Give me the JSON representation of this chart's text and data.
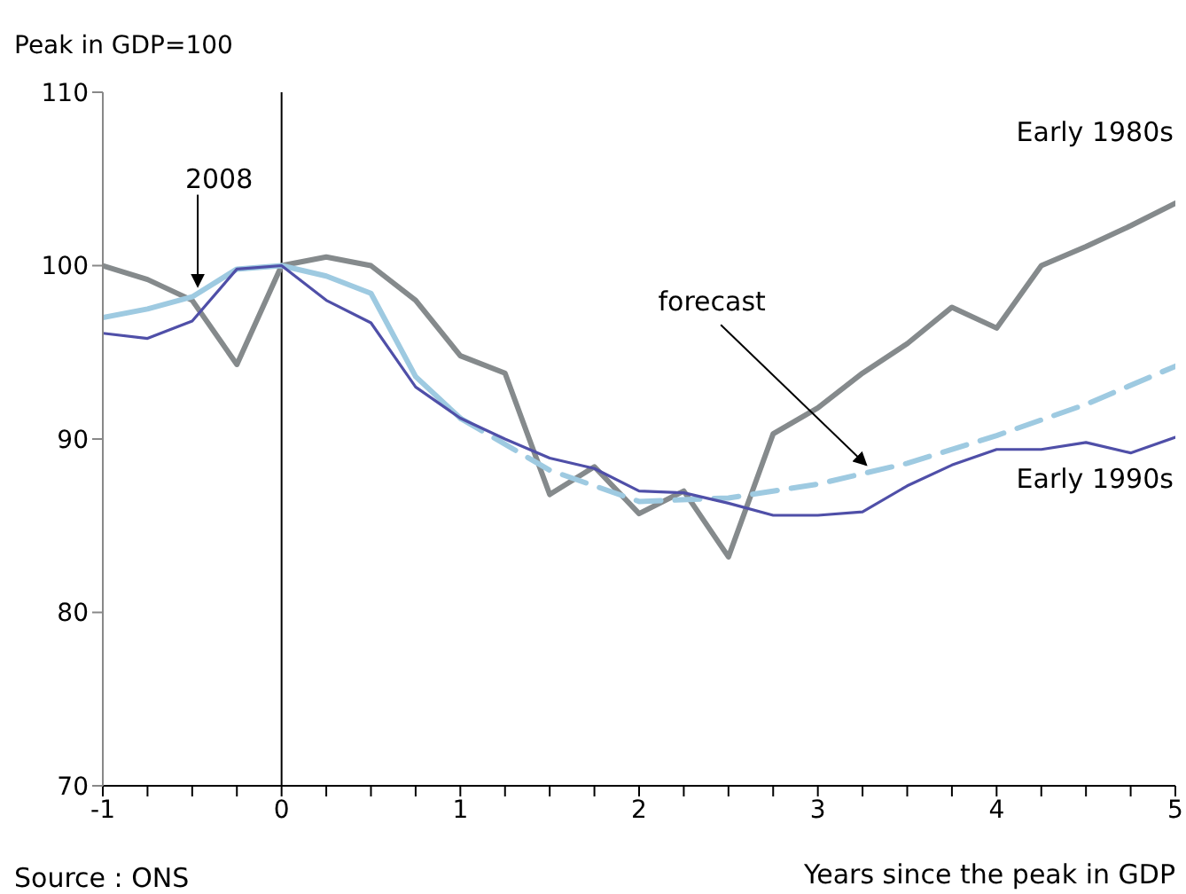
{
  "chart_data": {
    "type": "line",
    "ylabel": "Peak in GDP=100",
    "xlabel": "Years since the peak in GDP",
    "x": [
      -1,
      -0.75,
      -0.5,
      -0.25,
      0,
      0.25,
      0.5,
      0.75,
      1,
      1.25,
      1.5,
      1.75,
      2,
      2.25,
      2.5,
      2.75,
      3,
      3.25,
      3.5,
      3.75,
      4,
      4.25,
      4.5,
      4.75,
      5
    ],
    "series": [
      {
        "name": "Early 1980s",
        "color": "#858a8c",
        "values": [
          100,
          99.2,
          98,
          94.3,
          100,
          100.5,
          100,
          98,
          94.8,
          93.8,
          86.8,
          88.4,
          85.7,
          87,
          83.2,
          90.3,
          91.8,
          93.8,
          95.5,
          97.6,
          96.4,
          100,
          101.1,
          102.3,
          103.6
        ]
      },
      {
        "name": "Early 1990s",
        "color": "#4f4fa8",
        "values": [
          96.1,
          95.8,
          96.8,
          99.8,
          100,
          98,
          96.7,
          93,
          91.2,
          90,
          88.9,
          88.3,
          87,
          86.9,
          86.3,
          85.6,
          85.6,
          85.8,
          87.3,
          88.5,
          89.4,
          89.4,
          89.8,
          89.2,
          90.1
        ]
      },
      {
        "name": "2008",
        "color": "#9ecae1",
        "values": [
          97,
          97.5,
          98.2,
          99.8,
          100,
          99.4,
          98.4,
          93.6,
          91.2,
          null,
          null,
          null,
          null,
          null,
          null,
          null,
          null,
          null,
          null,
          null,
          null,
          null,
          null,
          null,
          null
        ]
      },
      {
        "color": "#9ecae1",
        "line_style": "dashed",
        "x": [
          1,
          1.5,
          2,
          2.5,
          3,
          3.5,
          4,
          4.5,
          5
        ],
        "values": [
          91.2,
          88.2,
          86.4,
          86.6,
          87.4,
          88.6,
          90.2,
          92,
          94.2
        ]
      }
    ],
    "xlim": [
      -1,
      5
    ],
    "ylim": [
      70,
      110
    ],
    "xticks": [
      -1,
      {
        "value": -0.75,
        "label": null
      },
      {
        "value": -0.5,
        "label": null
      },
      {
        "value": -0.25,
        "label": null
      },
      0,
      {
        "value": 0.25,
        "label": null
      },
      {
        "value": 0.5,
        "label": null
      },
      {
        "value": 0.75,
        "label": null
      },
      1,
      {
        "value": 1.25,
        "label": null
      },
      {
        "value": 1.5,
        "label": null
      },
      {
        "value": 1.75,
        "label": null
      },
      2,
      {
        "value": 2.25,
        "label": null
      },
      {
        "value": 2.5,
        "label": null
      },
      {
        "value": 2.75,
        "label": null
      },
      3,
      {
        "value": 3.25,
        "label": null
      },
      {
        "value": 3.5,
        "label": null
      },
      {
        "value": 3.75,
        "label": null
      },
      4,
      {
        "value": 4.25,
        "label": null
      },
      {
        "value": 4.5,
        "label": null
      },
      {
        "value": 4.75,
        "label": null
      },
      5
    ],
    "yticks": [
      70,
      80,
      90,
      100,
      110
    ],
    "ref_lines": [
      {
        "axis": "x",
        "value": 0,
        "color": "#000000"
      }
    ],
    "annotations": [
      {
        "text": "forecast",
        "x": 3.3,
        "y": 88.2
      },
      "Source : ONS"
    ],
    "grid": false,
    "legend": false,
    "marker": "none",
    "line_style": "solid"
  }
}
